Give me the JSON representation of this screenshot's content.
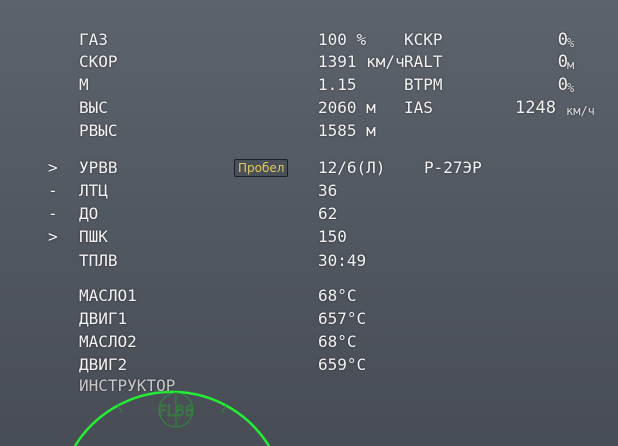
{
  "params": [
    {
      "label": "ГАЗ",
      "value": "100 %"
    },
    {
      "label": "СКОР",
      "value": "1391 км/ч"
    },
    {
      "label": "М",
      "value": "1.15"
    },
    {
      "label": "ВЫС",
      "value": "2060 м"
    },
    {
      "label": "РВЫС",
      "value": "1585 м"
    }
  ],
  "right": [
    {
      "label": "КСКР",
      "value": "0",
      "unit": "%"
    },
    {
      "label": "RALT",
      "value": "0",
      "unit": "м"
    },
    {
      "label": "ВТРМ",
      "value": "0",
      "unit": "%"
    },
    {
      "label": "IAS",
      "value": "1248",
      "unit": "км/ч"
    }
  ],
  "weapons": [
    {
      "mark": ">",
      "label": "УРВВ",
      "value": "12/6(Л)",
      "extra": "Р-27ЭР"
    },
    {
      "mark": "-",
      "label": "ЛТЦ",
      "value": "36"
    },
    {
      "mark": "-",
      "label": "ДО",
      "value": "62"
    },
    {
      "mark": ">",
      "label": "ПШК",
      "value": "150"
    },
    {
      "mark": "",
      "label": "ТПЛВ",
      "value": "30:49"
    }
  ],
  "key_hint": "Пробел",
  "engine": [
    {
      "label": "МАСЛО1",
      "value": "68°C"
    },
    {
      "label": "ДВИГ1",
      "value": "657°C"
    },
    {
      "label": "МАСЛО2",
      "value": "68°C"
    },
    {
      "label": "ДВИГ2",
      "value": "659°C"
    }
  ],
  "instructor": "ИНСТРУКТОР",
  "hud_label": "FL88",
  "colors": {
    "hud_green": "#22ee33"
  }
}
